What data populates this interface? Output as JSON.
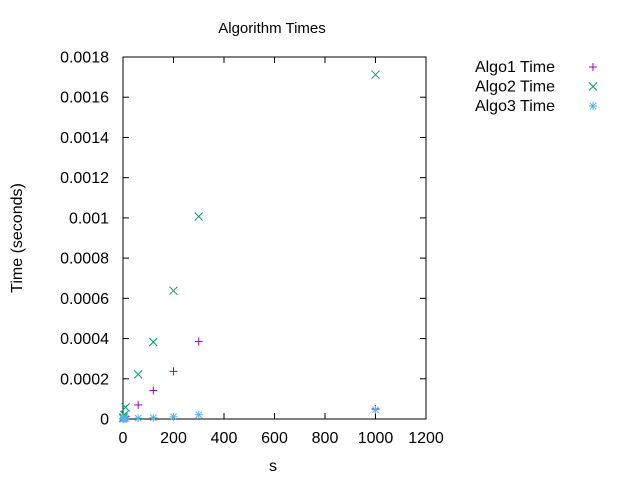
{
  "chart_data": {
    "type": "scatter",
    "title": "Algorithm Times",
    "xlabel": "s",
    "ylabel": "Time (seconds)",
    "xlim": [
      0,
      1200
    ],
    "ylim": [
      0,
      0.0018
    ],
    "x_ticks": [
      0,
      200,
      400,
      600,
      800,
      1000,
      1200
    ],
    "x_tick_labels": [
      "0",
      "200",
      "400",
      "600",
      "800",
      "1000",
      "1200"
    ],
    "y_ticks": [
      0,
      0.0002,
      0.0004,
      0.0006,
      0.0008,
      0.001,
      0.0012,
      0.0014,
      0.0016,
      0.0018
    ],
    "y_tick_labels": [
      "0",
      "0.0002",
      "0.0004",
      "0.0006",
      "0.0008",
      "0.001",
      "0.0012",
      "0.0014",
      "0.0016",
      "0.0018"
    ],
    "grid": false,
    "legend_position": "outside-right-top",
    "series": [
      {
        "name": "Algo1 Time",
        "marker": "plus",
        "color": "#9400d3",
        "x": [
          1,
          2,
          5,
          10,
          60,
          120,
          200,
          300,
          1000
        ],
        "y": [
          1e-06,
          2e-06,
          6e-06,
          1.2e-05,
          7e-05,
          0.000142,
          0.000237,
          0.000385,
          5e-05
        ]
      },
      {
        "name": "Algo2 Time",
        "marker": "cross",
        "color": "#009e73",
        "x": [
          1,
          2,
          5,
          10,
          60,
          120,
          200,
          300,
          1000
        ],
        "y": [
          3e-06,
          8e-06,
          2e-05,
          5.8e-05,
          0.000222,
          0.000383,
          0.000638,
          0.001007,
          0.001712
        ]
      },
      {
        "name": "Algo3 Time",
        "marker": "star",
        "color": "#56b4e9",
        "x": [
          1,
          2,
          5,
          10,
          60,
          120,
          200,
          300,
          1000
        ],
        "y": [
          1e-06,
          1e-06,
          2e-06,
          3e-06,
          4e-06,
          6e-06,
          1.1e-05,
          2.1e-05,
          4.6e-05
        ]
      }
    ]
  }
}
